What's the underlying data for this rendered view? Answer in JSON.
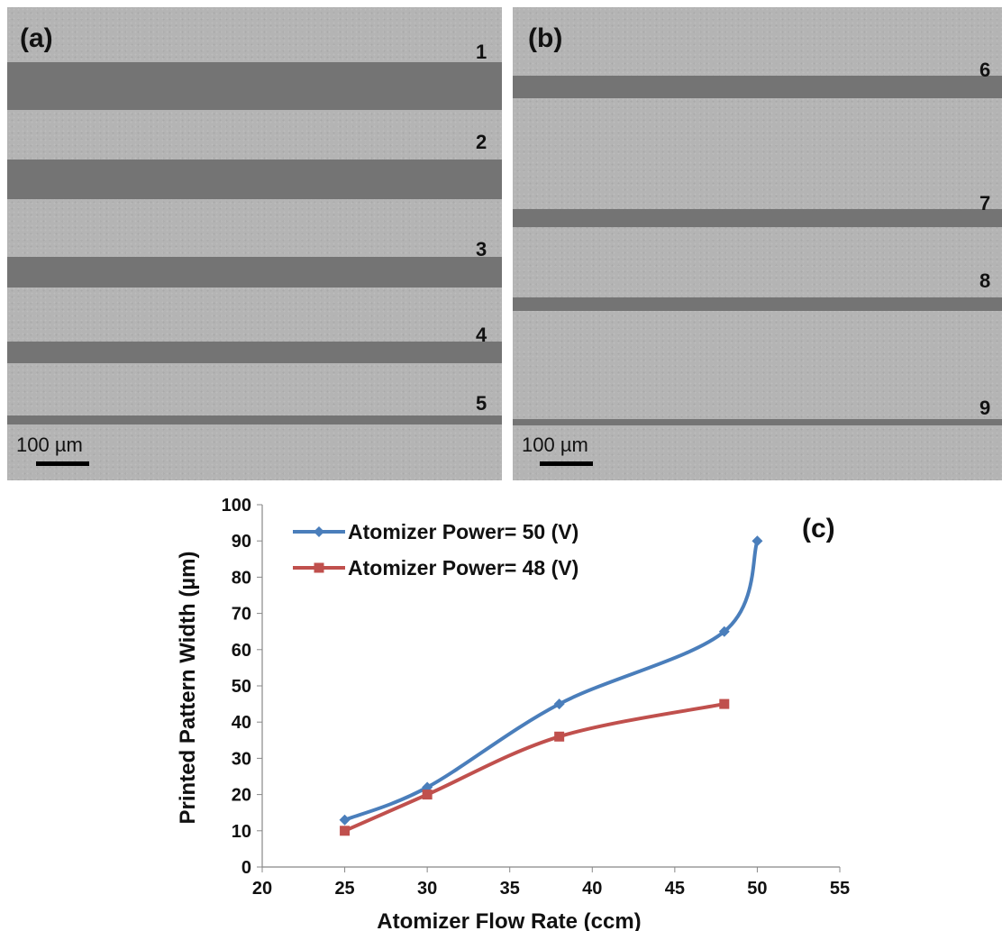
{
  "panel_a": {
    "label": "(a)",
    "line_numbers": [
      "1",
      "2",
      "3",
      "4",
      "5"
    ],
    "scale_label": "100 µm"
  },
  "panel_b": {
    "label": "(b)",
    "line_numbers": [
      "6",
      "7",
      "8",
      "9"
    ],
    "scale_label": "100 µm"
  },
  "chart_data": {
    "type": "line",
    "panel_label": "(c)",
    "xlabel": "Atomizer Flow Rate (ccm)",
    "ylabel": "Printed Pattern Width (µm)",
    "xlim": [
      20,
      55
    ],
    "ylim": [
      0,
      100
    ],
    "xticks": [
      20,
      25,
      30,
      35,
      40,
      45,
      50,
      55
    ],
    "yticks": [
      0,
      10,
      20,
      30,
      40,
      50,
      60,
      70,
      80,
      90,
      100
    ],
    "grid": false,
    "legend_position": "top-left",
    "series": [
      {
        "name": "Atomizer Power= 50 (V)",
        "color": "#4a7ebb",
        "marker": "diamond",
        "x": [
          25,
          30,
          38,
          48,
          50
        ],
        "y": [
          13,
          22,
          45,
          65,
          90
        ]
      },
      {
        "name": "Atomizer Power= 48 (V)",
        "color": "#c0504d",
        "marker": "square",
        "x": [
          25,
          30,
          38,
          48
        ],
        "y": [
          10,
          20,
          36,
          45
        ]
      }
    ]
  }
}
